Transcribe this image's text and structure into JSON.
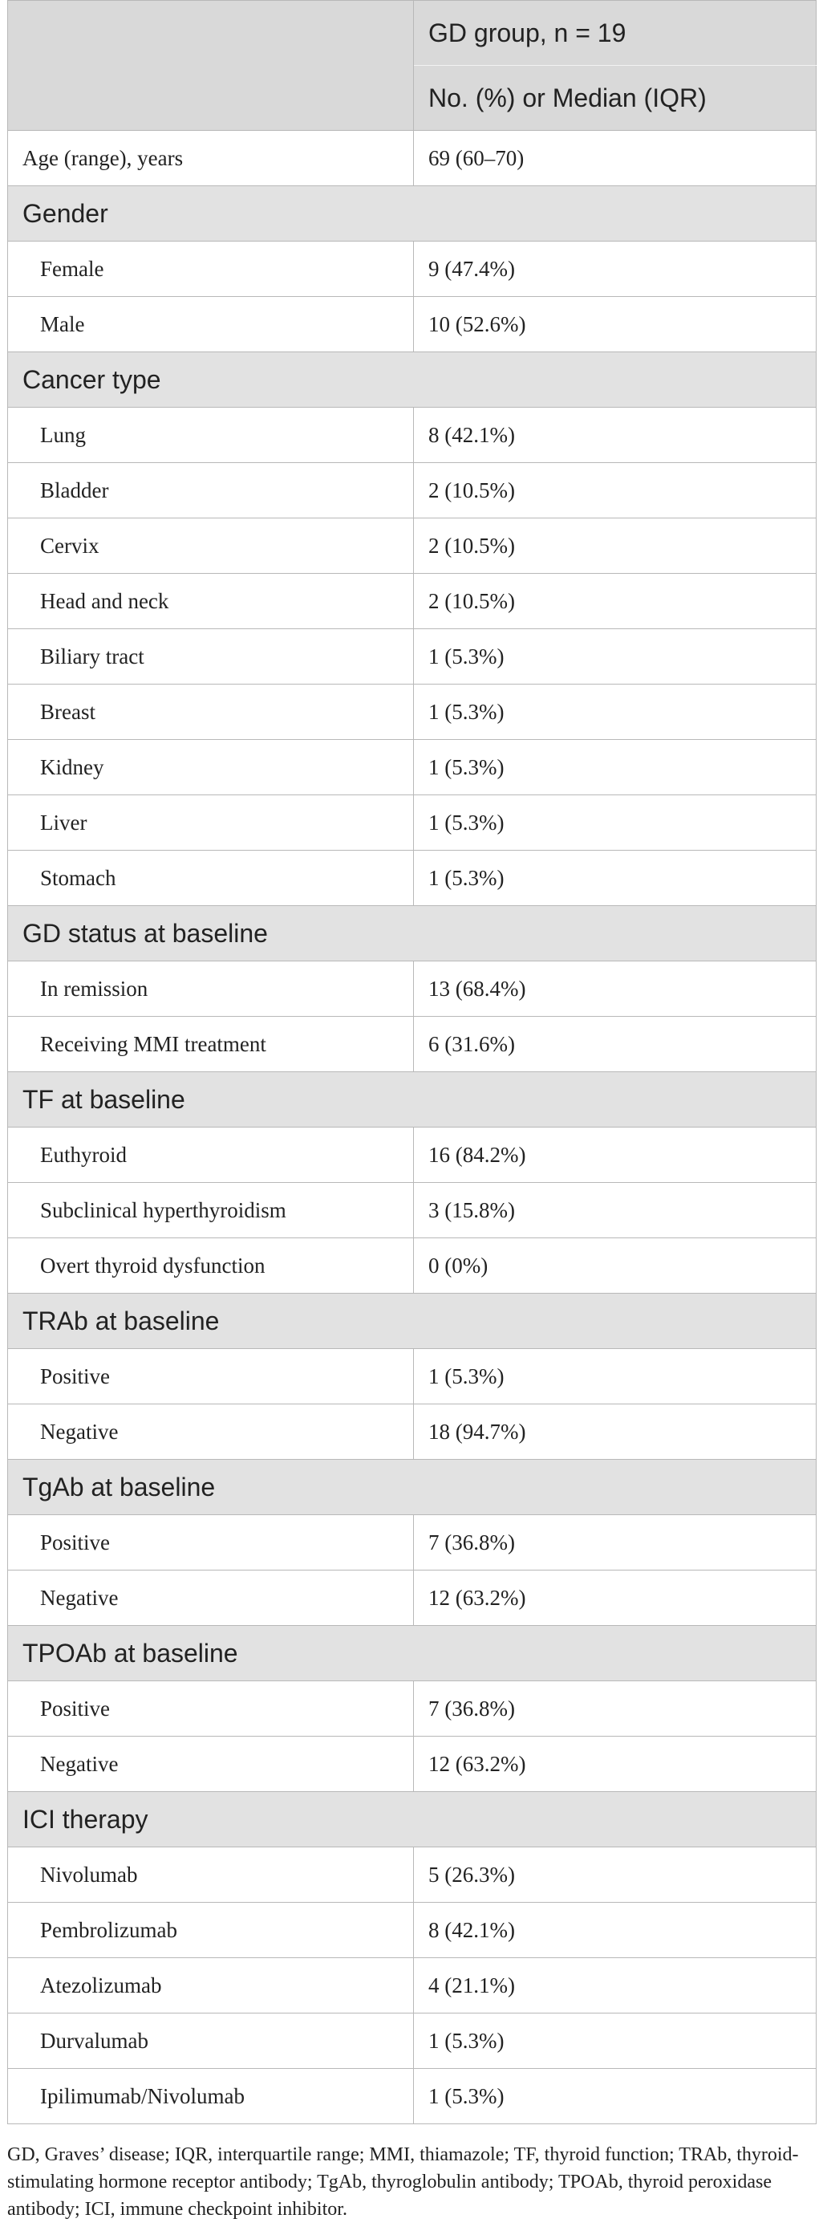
{
  "table": {
    "header": [
      "GD group, n = 19",
      "No. (%) or Median (IQR)"
    ],
    "age": [
      "Age (range), years",
      "69 (60–70)"
    ],
    "sections": [
      {
        "title": "Gender",
        "rows": [
          [
            "Female",
            "9 (47.4%)"
          ],
          [
            "Male",
            "10 (52.6%)"
          ]
        ]
      },
      {
        "title": "Cancer type",
        "rows": [
          [
            "Lung",
            "8 (42.1%)"
          ],
          [
            "Bladder",
            "2 (10.5%)"
          ],
          [
            "Cervix",
            "2 (10.5%)"
          ],
          [
            "Head and neck",
            "2 (10.5%)"
          ],
          [
            "Biliary tract",
            "1 (5.3%)"
          ],
          [
            "Breast",
            "1 (5.3%)"
          ],
          [
            "Kidney",
            "1 (5.3%)"
          ],
          [
            "Liver",
            "1 (5.3%)"
          ],
          [
            "Stomach",
            "1 (5.3%)"
          ]
        ]
      },
      {
        "title": "GD status at baseline",
        "rows": [
          [
            "In remission",
            "13 (68.4%)"
          ],
          [
            "Receiving MMI treatment",
            "6 (31.6%)"
          ]
        ]
      },
      {
        "title": "TF at baseline",
        "rows": [
          [
            "Euthyroid",
            "16 (84.2%)"
          ],
          [
            "Subclinical hyperthyroidism",
            "3 (15.8%)"
          ],
          [
            "Overt thyroid dysfunction",
            "0 (0%)"
          ]
        ]
      },
      {
        "title": "TRAb at baseline",
        "rows": [
          [
            "Positive",
            "1 (5.3%)"
          ],
          [
            "Negative",
            "18 (94.7%)"
          ]
        ]
      },
      {
        "title": "TgAb at baseline",
        "rows": [
          [
            "Positive",
            "7 (36.8%)"
          ],
          [
            "Negative",
            "12 (63.2%)"
          ]
        ]
      },
      {
        "title": "TPOAb at baseline",
        "rows": [
          [
            "Positive",
            "7 (36.8%)"
          ],
          [
            "Negative",
            "12 (63.2%)"
          ]
        ]
      },
      {
        "title": "ICI therapy",
        "rows": [
          [
            "Nivolumab",
            "5 (26.3%)"
          ],
          [
            "Pembrolizumab",
            "8 (42.1%)"
          ],
          [
            "Atezolizumab",
            "4 (21.1%)"
          ],
          [
            "Durvalumab",
            "1 (5.3%)"
          ],
          [
            "Ipilimumab/Nivolumab",
            "1 (5.3%)"
          ]
        ]
      }
    ]
  },
  "footnote": "GD, Graves’ disease; IQR, interquartile range; MMI, thiamazole; TF, thyroid function; TRAb, thyroid-stimulating hormone receptor antibody; TgAb, thyroglobulin antibody; TPOAb, thyroid peroxidase antibody; ICI, immune checkpoint inhibitor."
}
